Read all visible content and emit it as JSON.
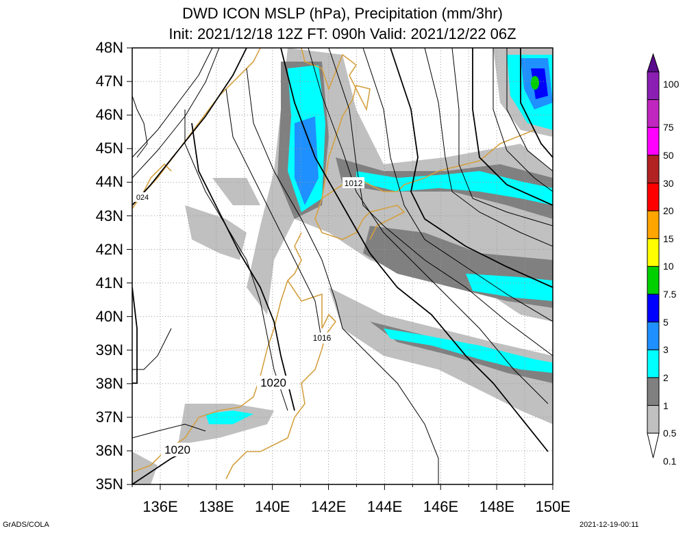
{
  "title": {
    "line1": "DWD ICON MSLP (hPa), Precipitation (mm/3hr)",
    "line2": "Init: 2021/12/18 12Z  FT: 090h  Valid: 2021/12/22 06Z"
  },
  "axes": {
    "lat_labels": [
      "48N",
      "47N",
      "46N",
      "45N",
      "44N",
      "43N",
      "42N",
      "41N",
      "40N",
      "39N",
      "38N",
      "37N",
      "36N",
      "35N"
    ],
    "lon_labels": [
      "136E",
      "138E",
      "140E",
      "142E",
      "144E",
      "146E",
      "148E",
      "150E"
    ]
  },
  "isobar_labels": [
    "1012",
    "1016",
    "1020",
    "1020",
    "024"
  ],
  "colorbar": {
    "labels": [
      "100",
      "75",
      "50",
      "30",
      "20",
      "15",
      "10",
      "7.5",
      "5",
      "3",
      "2",
      "1",
      "0.5",
      "0.1"
    ],
    "colors": [
      "#5a0a8c",
      "#8b1fb3",
      "#c026c0",
      "#ff00ff",
      "#b22222",
      "#ff0000",
      "#ffa500",
      "#ffff00",
      "#00d000",
      "#0000ff",
      "#1e90ff",
      "#00ffff",
      "#808080",
      "#c0c0c0",
      "#ffffff"
    ]
  },
  "footer": {
    "left": "GrADS/COLA",
    "right": "2021-12-19-00:11"
  },
  "colors": {
    "coast": "#d4a040",
    "isobar": "#000000",
    "grid": "#999999"
  }
}
